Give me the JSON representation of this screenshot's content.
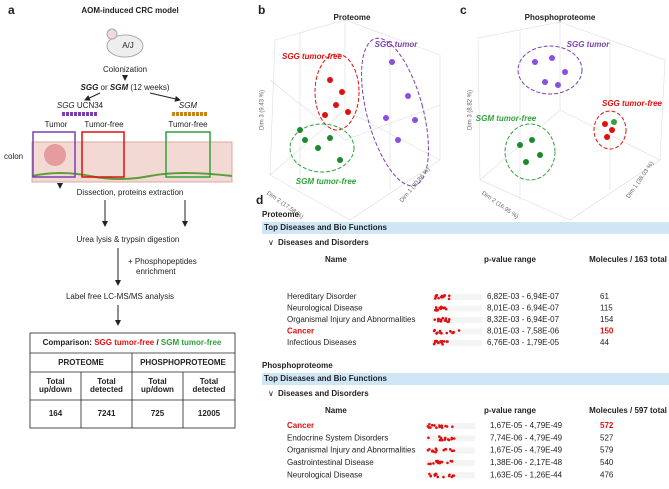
{
  "panel_a": {
    "label": "a",
    "title": "AOM-induced CRC model",
    "strain": "A/J",
    "step1": "Colonization",
    "treatment": [
      "SGG",
      "or",
      "SGM",
      "(12 weeks)"
    ],
    "group_sgg": [
      "SGG",
      "UCN34"
    ],
    "group_sgm": "SGM",
    "tissue": [
      "Tumor",
      "Tumor-free",
      "Tumor-free"
    ],
    "organ": "colon",
    "steps": [
      "Dissection, proteins extraction",
      "Urea lysis & trypsin digestion",
      "+ Phosphopeptides",
      "enrichment",
      "Label free LC-MS/MS analysis"
    ],
    "table": {
      "comparison": [
        "Comparison:",
        "SGG tumor-free",
        "/",
        "SGM tumor-free"
      ],
      "headers": [
        "PROTEOME",
        "PHOSPHOPROTEOME"
      ],
      "subheaders": [
        [
          "Total",
          "up/down"
        ],
        [
          "Total",
          "detected"
        ],
        [
          "Total",
          "up/down"
        ],
        [
          "Total",
          "detected"
        ]
      ],
      "values": [
        164,
        7241,
        725,
        12005
      ]
    }
  },
  "panel_b": {
    "label": "b",
    "title": "Proteome",
    "groups": [
      "SGG tumor-free",
      "SGG tumor",
      "SGM tumor-free"
    ],
    "axes": [
      "Dim 1 (30.88 %)",
      "Dim 2 (17.58 %)",
      "Dim 3 (9.43 %)"
    ]
  },
  "panel_c": {
    "label": "c",
    "title": "Phosphoproteome",
    "groups": [
      "SGG tumor",
      "SGG tumor-free",
      "SGM tumor-free"
    ],
    "axes": [
      "Dim 1 (38.03 %)",
      "Dim 2 (16.95 %)",
      "Dim 3 (8.82 %)"
    ]
  },
  "panel_d": {
    "label": "d",
    "sections": [
      {
        "title": "Proteome",
        "bar": "Top Diseases and Bio Functions",
        "subheading": "Diseases and Disorders",
        "columns": [
          "Name",
          "p-value range",
          "Molecules / 163 total"
        ],
        "highlight": 3,
        "rows": [
          [
            "Hereditary Disorder",
            "6,82E-03 - 6,94E-07",
            61
          ],
          [
            "Neurological Disease",
            "8,01E-03 - 6,94E-07",
            115
          ],
          [
            "Organismal Injury and Abnormalities",
            "8,32E-03 - 6,94E-07",
            154
          ],
          [
            "Cancer",
            "8,01E-03 - 7,58E-06",
            150
          ],
          [
            "Infectious Diseases",
            "6,76E-03 - 1,79E-05",
            44
          ]
        ]
      },
      {
        "title": "Phosphoproteome",
        "bar": "Top Diseases and Bio Functions",
        "subheading": "Diseases and Disorders",
        "columns": [
          "Name",
          "p-value range",
          "Molecules / 597 total"
        ],
        "highlight": 0,
        "rows": [
          [
            "Cancer",
            "1,67E-05 - 4,79E-49",
            572
          ],
          [
            "Endocrine System Disorders",
            "7,74E-06 - 4,79E-49",
            527
          ],
          [
            "Organismal Injury and Abnormalities",
            "1,67E-05 - 4,79E-49",
            579
          ],
          [
            "Gastrointestinal Disease",
            "1,38E-06 - 2,17E-48",
            540
          ],
          [
            "Neurological Disease",
            "1,63E-05 - 1,26E-44",
            476
          ]
        ]
      }
    ]
  }
}
